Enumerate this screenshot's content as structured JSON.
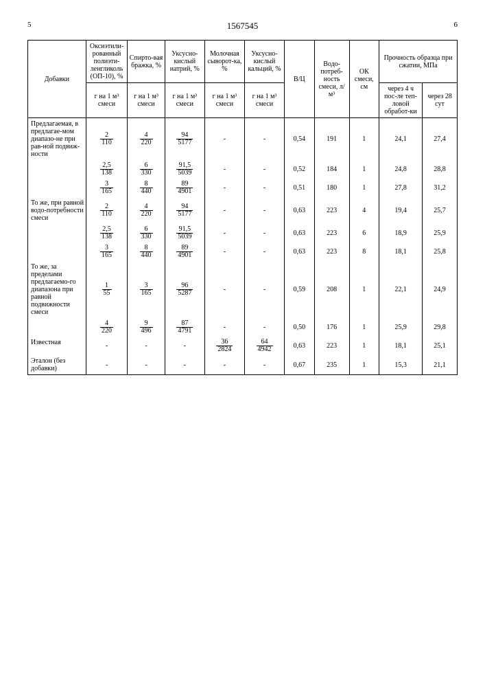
{
  "page_left": "5",
  "patent_number": "1567545",
  "page_right": "6",
  "headers": {
    "dobavki": "Добавки",
    "op10": "Оксиэтили-рованный полиэти-ленгликоль (ОП-10), %",
    "brazh": "Спирто-вая бражка, %",
    "natriy": "Уксусно-кислый натрий, %",
    "syvor": "Молочная сыворот-ка, %",
    "kalciy": "Уксусно-кислый кальций, %",
    "vp": "В/Ц",
    "vodo": "Водо-потреб-ность смеси, л/м³",
    "ok": "ОК смеси, см",
    "proch": "Прочность образца при сжатии, МПа",
    "sub_gram": "г на 1 м³ смеси",
    "proch_4h": "через 4 ч пос-ле теп-ловой обработ-ки",
    "proch_28": "через 28 сут"
  },
  "rows": [
    {
      "label": "Предлагаемая, в предлагае-мом диапазо-не при рав-ной подвиж-ности",
      "op10_n": "2",
      "op10_d": "110",
      "br_n": "4",
      "br_d": "220",
      "na_n": "94",
      "na_d": "5177",
      "sy": "-",
      "ca": "-",
      "vp": "0,54",
      "vodo": "191",
      "ok": "1",
      "p4": "24,1",
      "p28": "27,4"
    },
    {
      "label": "",
      "op10_n": "2,5",
      "op10_d": "138",
      "br_n": "6",
      "br_d": "330",
      "na_n": "91,5",
      "na_d": "5039",
      "sy": "-",
      "ca": "-",
      "vp": "0,52",
      "vodo": "184",
      "ok": "1",
      "p4": "24,8",
      "p28": "28,8"
    },
    {
      "label": "",
      "op10_n": "3",
      "op10_d": "165",
      "br_n": "8",
      "br_d": "440",
      "na_n": "89",
      "na_d": "4901",
      "sy": "-",
      "ca": "-",
      "vp": "0,51",
      "vodo": "180",
      "ok": "1",
      "p4": "27,8",
      "p28": "31,2"
    },
    {
      "label": "То же, при равной водо-потребности смеси",
      "op10_n": "2",
      "op10_d": "110",
      "br_n": "4",
      "br_d": "220",
      "na_n": "94",
      "na_d": "5177",
      "sy": "-",
      "ca": "-",
      "vp": "0,63",
      "vodo": "223",
      "ok": "4",
      "p4": "19,4",
      "p28": "25,7"
    },
    {
      "label": "",
      "op10_n": "2,5",
      "op10_d": "138",
      "br_n": "6",
      "br_d": "330",
      "na_n": "91,5",
      "na_d": "5039",
      "sy": "-",
      "ca": "-",
      "vp": "0,63",
      "vodo": "223",
      "ok": "6",
      "p4": "18,9",
      "p28": "25,9"
    },
    {
      "label": "",
      "op10_n": "3",
      "op10_d": "165",
      "br_n": "8",
      "br_d": "440",
      "na_n": "89",
      "na_d": "4901",
      "sy": "-",
      "ca": "-",
      "vp": "0,63",
      "vodo": "223",
      "ok": "8",
      "p4": "18,1",
      "p28": "25,8"
    },
    {
      "label": "То же, за пределами предлагаемо-го диапазона при равной подвижности смеси",
      "op10_n": "1",
      "op10_d": "55",
      "br_n": "3",
      "br_d": "165",
      "na_n": "96",
      "na_d": "5287",
      "sy": "-",
      "ca": "-",
      "vp": "0,59",
      "vodo": "208",
      "ok": "1",
      "p4": "22,1",
      "p28": "24,9"
    },
    {
      "label": "",
      "op10_n": "4",
      "op10_d": "220",
      "br_n": "9",
      "br_d": "496",
      "na_n": "87",
      "na_d": "4791",
      "sy": "-",
      "ca": "-",
      "vp": "0,50",
      "vodo": "176",
      "ok": "1",
      "p4": "25,9",
      "p28": "29,8"
    },
    {
      "label": "Известная",
      "op10": "-",
      "br": "-",
      "na": "-",
      "sy_n": "36",
      "sy_d": "2824",
      "ca_n": "64",
      "ca_d": "4942",
      "vp": "0,63",
      "vodo": "223",
      "ok": "1",
      "p4": "18,1",
      "p28": "25,1"
    },
    {
      "label": "Эталон (без добавки)",
      "op10": "-",
      "br": "-",
      "na": "-",
      "sy": "-",
      "ca": "-",
      "vp": "0,67",
      "vodo": "235",
      "ok": "1",
      "p4": "15,3",
      "p28": "21,1"
    }
  ]
}
